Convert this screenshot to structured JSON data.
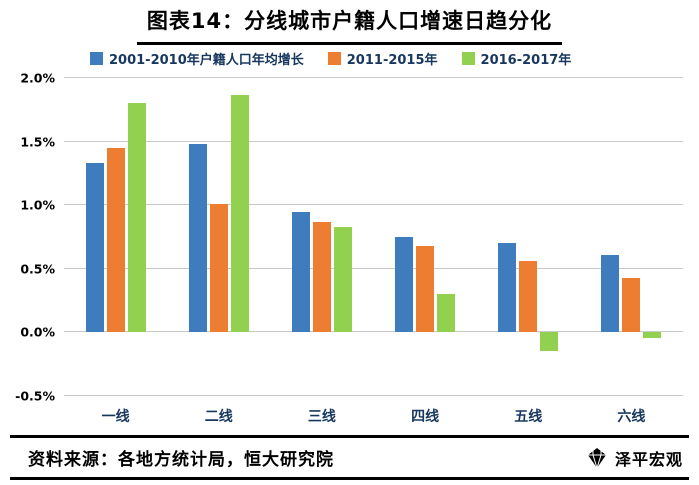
{
  "title": "图表14：分线城市户籍人口增速日趋分化",
  "chart_data": {
    "type": "bar",
    "title": "图表14：分线城市户籍人口增速日趋分化",
    "categories": [
      "一线",
      "二线",
      "三线",
      "四线",
      "五线",
      "六线"
    ],
    "series": [
      {
        "name": "2001-2010年户籍人口年均增长",
        "color": "#3E7CBE",
        "values": [
          1.33,
          1.48,
          0.95,
          0.75,
          0.7,
          0.61
        ]
      },
      {
        "name": "2011-2015年",
        "color": "#ED7D31",
        "values": [
          1.45,
          1.01,
          0.87,
          0.68,
          0.56,
          0.43
        ]
      },
      {
        "name": "2016-2017年",
        "color": "#92D050",
        "values": [
          1.8,
          1.87,
          0.83,
          0.3,
          -0.15,
          -0.04
        ]
      }
    ],
    "ylim": [
      -0.5,
      2.0
    ],
    "yticks": [
      {
        "label": "2.0%",
        "value": 2.0
      },
      {
        "label": "1.5%",
        "value": 1.5
      },
      {
        "label": "1.0%",
        "value": 1.0
      },
      {
        "label": "0.5%",
        "value": 0.5
      },
      {
        "label": "0.0%",
        "value": 0.0
      },
      {
        "label": "-0.5%",
        "value": -0.5
      }
    ],
    "grid": true,
    "legend_position": "top",
    "xlabel": "",
    "ylabel": ""
  },
  "footer": {
    "source": "资料来源：各地方统计局，恒大研究院"
  },
  "logo": {
    "text": "泽平宏观"
  }
}
